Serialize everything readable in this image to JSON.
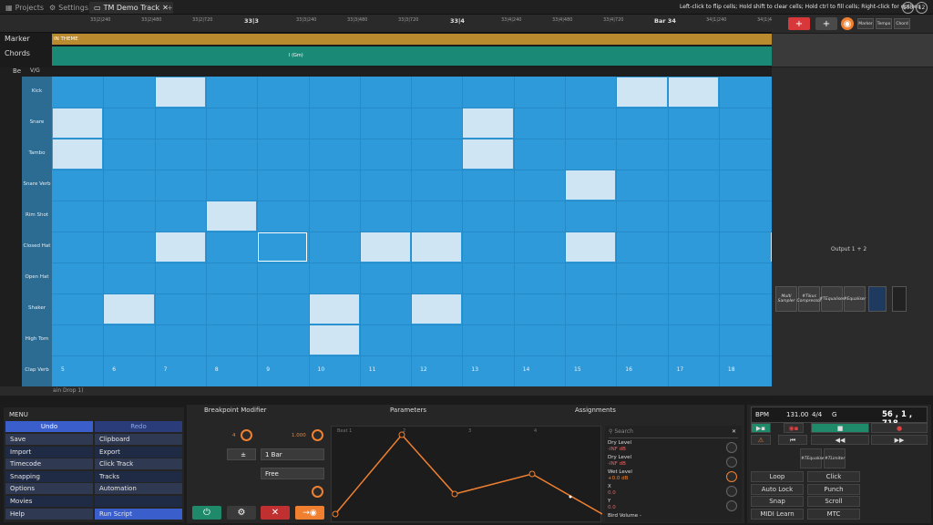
{
  "tabs": {
    "projects": "Projects",
    "settings": "Settings",
    "demo": "TM Demo Track",
    "add": "+"
  },
  "hint": "Left-click to flip cells; Hold shift to clear cells; Hold ctrl to fill cells; Right-click for options",
  "top_round": [
    "100",
    "12"
  ],
  "ruler": {
    "ticks": [
      "33|2|240",
      "33|2|480",
      "33|2|720",
      "33|3",
      "33|3|240",
      "33|3|480",
      "33|3|720",
      "33|4",
      "33|4|240",
      "33|4|480",
      "33|4|720",
      "Bar 34",
      "34|1|240",
      "34|1|480"
    ]
  },
  "toolstrip": {
    "plus": "+",
    "plus2": "+",
    "marker": "Marker",
    "tempo": "Tempo",
    "chord": "Chord"
  },
  "tracks": {
    "marker": "Marker",
    "chords": "Chords",
    "beat": "Be",
    "marker_text": "IN THEME",
    "chord_text": "I (Gm)",
    "vg": "V/G"
  },
  "grid": {
    "rows": [
      "Kick",
      "Snare",
      "Tambo",
      "Snare Verb",
      "Rim Shot",
      "Closed Hat",
      "Open Hat",
      "Shaker",
      "High Tom",
      "Clap Verb"
    ],
    "steps": [
      "5",
      "6",
      "7",
      "8",
      "9",
      "10",
      "11",
      "12",
      "13",
      "14",
      "15",
      "16",
      "17",
      "18"
    ],
    "bottom_text": "ain Drop 1)"
  },
  "plugins": {
    "p1": "Multi Sampler",
    "p2": "#Tikus Compressor",
    "p3": "#TEqualiser",
    "p4": "#Equaliser",
    "output": "Output 1 + 2"
  },
  "menu": {
    "title": "MENU",
    "undo": "Undo",
    "redo": "Redo",
    "left": [
      "Save",
      "Import",
      "Timecode",
      "Snapping",
      "Options",
      "Movies",
      "Help"
    ],
    "right": [
      "Clipboard",
      "Export",
      "Click Track",
      "Tracks",
      "Automation",
      "",
      "Run Script"
    ]
  },
  "breakpoint": {
    "title": "Breakpoint Modifier",
    "params_tab": "Parameters",
    "assign_tab": "Assignments",
    "knob1": "4",
    "knob2": "1.000",
    "bar": "1 Bar",
    "free": "Free",
    "beat_label": "Beat 1",
    "graph_marks": [
      "2",
      "3",
      "4"
    ],
    "search": "Search",
    "params": [
      {
        "name": "Dry Level",
        "value": "-INF dB"
      },
      {
        "name": "Dry Level",
        "value": "-INF dB"
      },
      {
        "name": "Wet Level",
        "value": "+0.0 dB"
      },
      {
        "name": "X",
        "value": "0.0"
      },
      {
        "name": "Y",
        "value": "0.0"
      },
      {
        "name": "Bird Volume -",
        "value": ""
      }
    ]
  },
  "transport": {
    "bpm_label": "BPM",
    "bpm": "131.00",
    "sig": "4/4",
    "key": "G",
    "position": "56 , 1 , 718",
    "plug1": "#TEqualiser",
    "plug2": "#TLimiter",
    "buttons": [
      "Loop",
      "Click",
      "Auto Lock",
      "Punch",
      "Snap",
      "Scroll",
      "MIDI Learn",
      "MTC"
    ]
  },
  "colors": {
    "grid": "#2e9ad9",
    "cell": "#cfe5f4",
    "marker": "#b98a2e",
    "chord": "#1a8a77",
    "accent": "#f08030"
  }
}
